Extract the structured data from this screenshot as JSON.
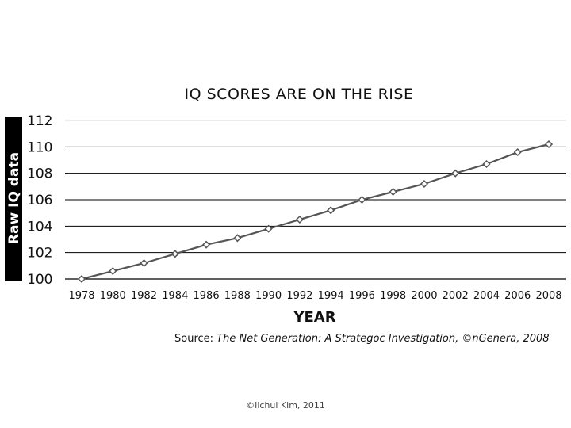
{
  "chart_data": {
    "type": "line",
    "title": "IQ SCORES ARE ON THE RISE",
    "xlabel": "YEAR",
    "ylabel": "Raw IQ data",
    "categories": [
      "1978",
      "1980",
      "1982",
      "1984",
      "1986",
      "1988",
      "1990",
      "1992",
      "1994",
      "1996",
      "1998",
      "2000",
      "2002",
      "2004",
      "2006",
      "2008"
    ],
    "series": [
      {
        "values": [
          100.0,
          100.6,
          101.2,
          101.9,
          102.6,
          103.1,
          103.8,
          104.5,
          105.2,
          106.0,
          106.6,
          107.2,
          108.0,
          108.7,
          109.6,
          110.2
        ]
      }
    ],
    "ylim": [
      100,
      112
    ],
    "yticks": [
      100,
      102,
      104,
      106,
      108,
      110,
      112
    ],
    "grid": true,
    "colors": {
      "line": "#555555",
      "grid": "#000000",
      "ylabel_bg": "#000000"
    }
  },
  "source": {
    "prefix": "Source: ",
    "text": "The Net Generation: A Strategoc Investigation, ©nGenera, 2008"
  },
  "footer": "©Ilchul Kim, 2011"
}
